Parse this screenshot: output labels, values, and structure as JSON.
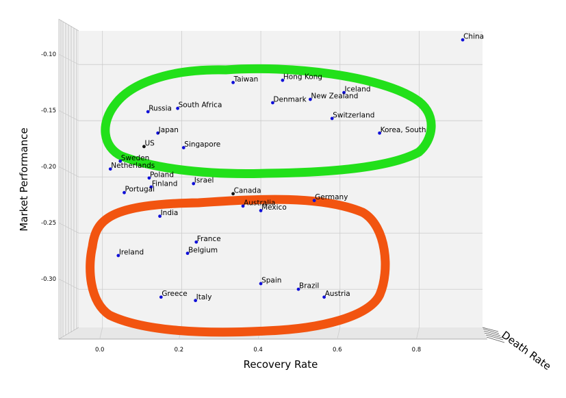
{
  "chart_data": {
    "type": "scatter",
    "projection": "3d",
    "xlabel": "Recovery Rate",
    "ylabel": "Market Performance",
    "zlabel": "Death Rate",
    "xlim": [
      -0.06,
      0.96
    ],
    "ylim": [
      -0.334,
      -0.07
    ],
    "xticks": [
      "0.0",
      "0.2",
      "0.4",
      "0.6",
      "0.8"
    ],
    "yticks": [
      "-0.10",
      "-0.15",
      "-0.20",
      "-0.25",
      "-0.30"
    ],
    "points": [
      {
        "label": "China",
        "x": 0.91,
        "y": -0.078,
        "marker": "blue"
      },
      {
        "label": "Taiwan",
        "x": 0.33,
        "y": -0.116,
        "marker": "blue"
      },
      {
        "label": "Hong Kong",
        "x": 0.455,
        "y": -0.114,
        "marker": "blue"
      },
      {
        "label": "Iceland",
        "x": 0.61,
        "y": -0.125,
        "marker": "blue"
      },
      {
        "label": "Denmark",
        "x": 0.43,
        "y": -0.134,
        "marker": "blue"
      },
      {
        "label": "New Zealand",
        "x": 0.525,
        "y": -0.131,
        "marker": "blue"
      },
      {
        "label": "South Africa",
        "x": 0.19,
        "y": -0.139,
        "marker": "blue"
      },
      {
        "label": "Russia",
        "x": 0.115,
        "y": -0.142,
        "marker": "blue"
      },
      {
        "label": "Switzerland",
        "x": 0.58,
        "y": -0.148,
        "marker": "blue"
      },
      {
        "label": "Japan",
        "x": 0.14,
        "y": -0.161,
        "marker": "blue"
      },
      {
        "label": "Korea, South",
        "x": 0.7,
        "y": -0.161,
        "marker": "blue"
      },
      {
        "label": "US",
        "x": 0.105,
        "y": -0.173,
        "marker": "black"
      },
      {
        "label": "Singapore",
        "x": 0.205,
        "y": -0.174,
        "marker": "blue"
      },
      {
        "label": "Sweden",
        "x": 0.045,
        "y": -0.186,
        "marker": "blue"
      },
      {
        "label": "Netherlands",
        "x": 0.02,
        "y": -0.193,
        "marker": "blue"
      },
      {
        "label": "Poland",
        "x": 0.118,
        "y": -0.201,
        "marker": "blue"
      },
      {
        "label": "Israel",
        "x": 0.23,
        "y": -0.206,
        "marker": "blue"
      },
      {
        "label": "Finland",
        "x": 0.123,
        "y": -0.209,
        "marker": "blue"
      },
      {
        "label": "Portugal",
        "x": 0.055,
        "y": -0.214,
        "marker": "blue"
      },
      {
        "label": "Canada",
        "x": 0.33,
        "y": -0.215,
        "marker": "black"
      },
      {
        "label": "Germany",
        "x": 0.535,
        "y": -0.221,
        "marker": "blue"
      },
      {
        "label": "Australia",
        "x": 0.355,
        "y": -0.226,
        "marker": "blue"
      },
      {
        "label": "Mexico",
        "x": 0.4,
        "y": -0.23,
        "marker": "blue"
      },
      {
        "label": "India",
        "x": 0.145,
        "y": -0.235,
        "marker": "blue"
      },
      {
        "label": "France",
        "x": 0.237,
        "y": -0.258,
        "marker": "blue"
      },
      {
        "label": "Belgium",
        "x": 0.215,
        "y": -0.268,
        "marker": "blue"
      },
      {
        "label": "Ireland",
        "x": 0.04,
        "y": -0.27,
        "marker": "blue"
      },
      {
        "label": "Spain",
        "x": 0.4,
        "y": -0.295,
        "marker": "blue"
      },
      {
        "label": "Brazil",
        "x": 0.495,
        "y": -0.3,
        "marker": "blue"
      },
      {
        "label": "Austria",
        "x": 0.56,
        "y": -0.307,
        "marker": "blue"
      },
      {
        "label": "Greece",
        "x": 0.148,
        "y": -0.307,
        "marker": "blue"
      },
      {
        "label": "Italy",
        "x": 0.235,
        "y": -0.31,
        "marker": "blue"
      }
    ],
    "annotations": [
      {
        "shape": "freehand-loop",
        "color": "#22e01a",
        "encloses": "upper group"
      },
      {
        "shape": "freehand-loop",
        "color": "#f25410",
        "encloses": "lower group"
      }
    ],
    "colors": {
      "point_blue": "#1010d8",
      "point_black": "#111111",
      "pane_left": "#f0f0f0",
      "pane_back": "#f2f2f2",
      "pane_floor": "#e8e8e8",
      "grid": "#cccccc",
      "green_annotation": "#22e01a",
      "orange_annotation": "#f25410"
    }
  }
}
